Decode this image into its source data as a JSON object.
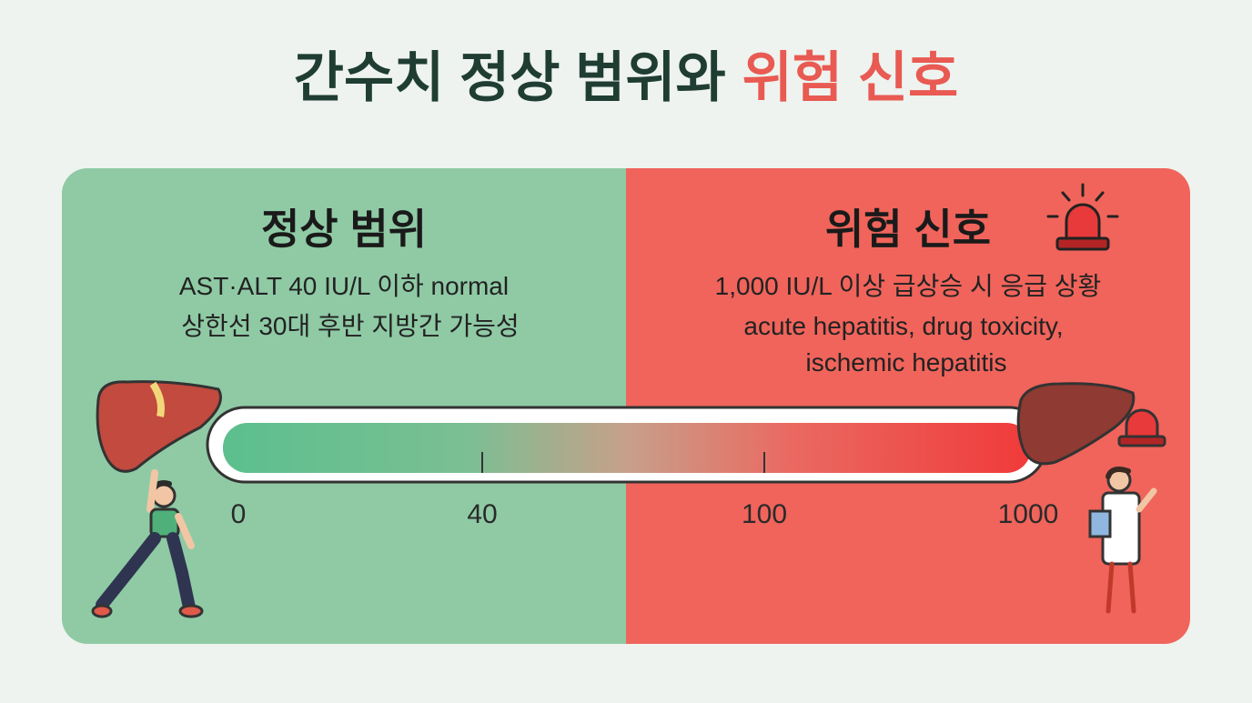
{
  "title": {
    "main": "간수치 정상 범위와",
    "highlight": "위험 신호"
  },
  "normal": {
    "heading": "정상 범위",
    "lines": [
      "AST·ALT 40 IU/L 이하 normal",
      "상한선 30대 후반 지방간 가능성"
    ]
  },
  "danger": {
    "heading": "위험 신호",
    "lines": [
      "1,000 IU/L 이상 급상승 시 응급 상황",
      "acute hepatitis, drug toxicity,",
      "ischemic hepatitis"
    ]
  },
  "scale": {
    "labels": [
      "0",
      "40",
      "100",
      "1000"
    ]
  }
}
